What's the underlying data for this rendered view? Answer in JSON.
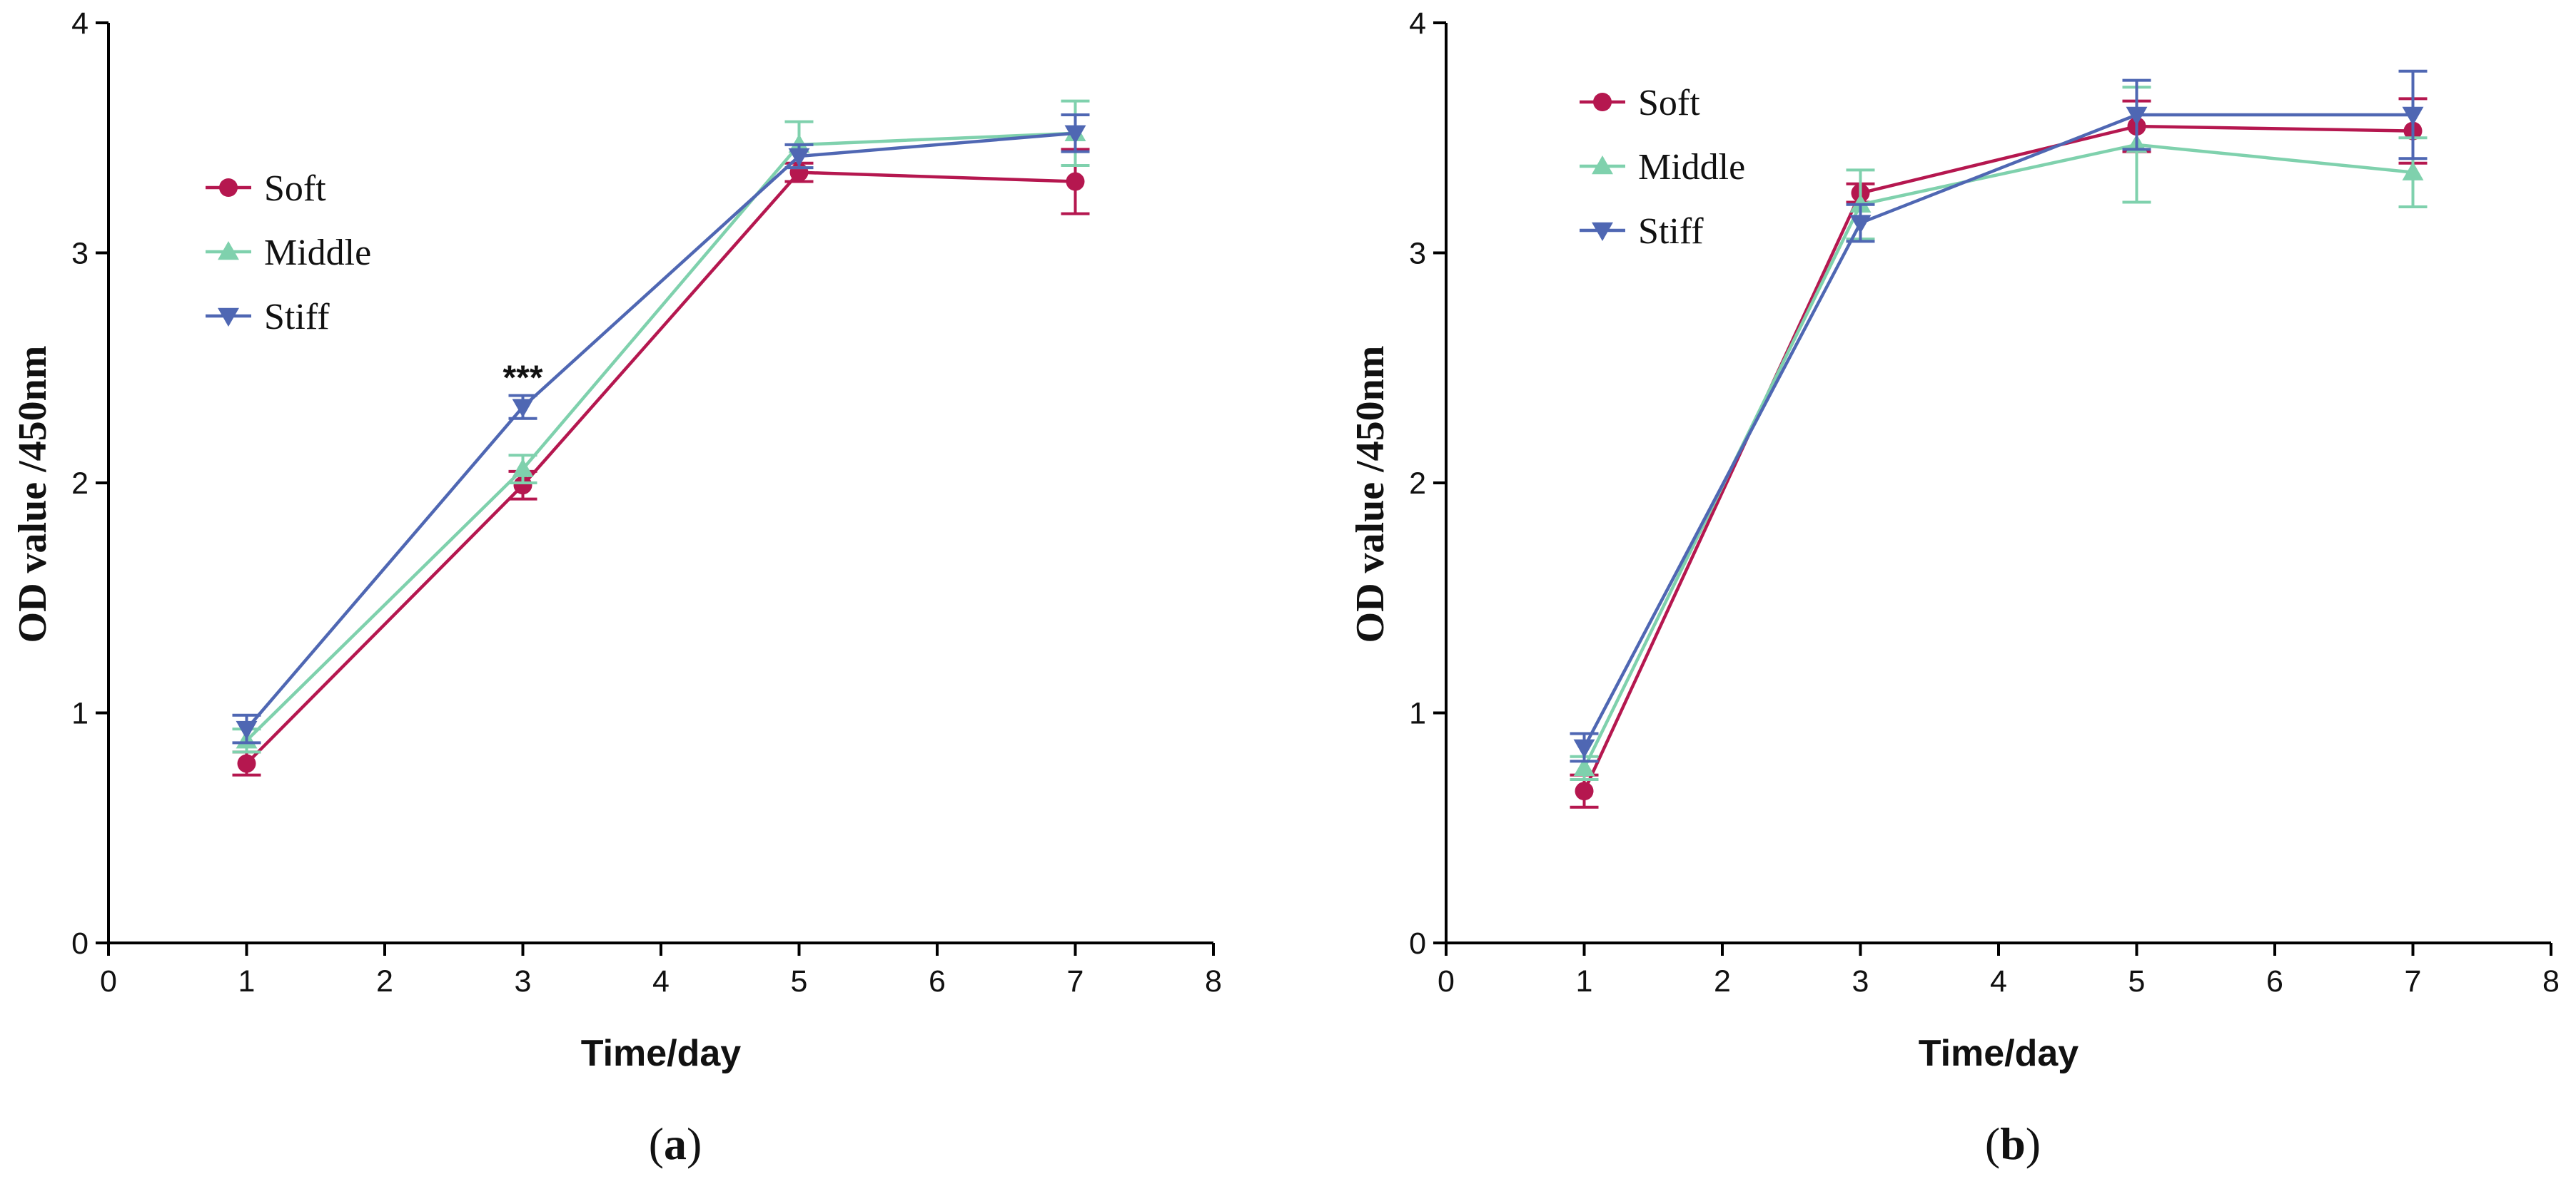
{
  "chart_data": [
    {
      "type": "line",
      "panel_label": {
        "open": "(",
        "letter": "a",
        "close": ")"
      },
      "xlabel": "Time/day",
      "ylabel": "OD value /450nm",
      "xlim": [
        0,
        8
      ],
      "ylim": [
        0,
        4
      ],
      "xticks": [
        0,
        1,
        2,
        3,
        4,
        5,
        6,
        7,
        8
      ],
      "yticks": [
        0,
        1,
        2,
        3,
        4
      ],
      "grid": false,
      "legend_position": "upper-left",
      "x": [
        1,
        3,
        5,
        7
      ],
      "series": [
        {
          "name": "Soft",
          "marker": "circle",
          "color": "#b5174f",
          "values": [
            0.78,
            1.99,
            3.35,
            3.31
          ],
          "errors": [
            0.05,
            0.06,
            0.04,
            0.14
          ]
        },
        {
          "name": "Middle",
          "marker": "triangle-up",
          "color": "#7fd1ad",
          "values": [
            0.88,
            2.06,
            3.47,
            3.52
          ],
          "errors": [
            0.05,
            0.06,
            0.1,
            0.14
          ]
        },
        {
          "name": "Stiff",
          "marker": "triangle-down",
          "color": "#4f67b3",
          "values": [
            0.93,
            2.33,
            3.42,
            3.52
          ],
          "errors": [
            0.06,
            0.05,
            0.05,
            0.08
          ]
        }
      ],
      "annotations": [
        {
          "text": "***",
          "x": 3,
          "y": 2.47
        }
      ]
    },
    {
      "type": "line",
      "panel_label": {
        "open": "(",
        "letter": "b",
        "close": ")"
      },
      "xlabel": "Time/day",
      "ylabel": "OD value /450nm",
      "xlim": [
        0,
        8
      ],
      "ylim": [
        0,
        4
      ],
      "xticks": [
        0,
        1,
        2,
        3,
        4,
        5,
        6,
        7,
        8
      ],
      "yticks": [
        0,
        1,
        2,
        3,
        4
      ],
      "grid": false,
      "legend_position": "upper-left",
      "x": [
        1,
        3,
        5,
        7
      ],
      "series": [
        {
          "name": "Soft",
          "marker": "circle",
          "color": "#b5174f",
          "values": [
            0.66,
            3.26,
            3.55,
            3.53
          ],
          "errors": [
            0.07,
            0.04,
            0.11,
            0.14
          ]
        },
        {
          "name": "Middle",
          "marker": "triangle-up",
          "color": "#7fd1ad",
          "values": [
            0.76,
            3.21,
            3.47,
            3.35
          ],
          "errors": [
            0.05,
            0.15,
            0.25,
            0.15
          ]
        },
        {
          "name": "Stiff",
          "marker": "triangle-down",
          "color": "#4f67b3",
          "values": [
            0.85,
            3.13,
            3.6,
            3.6
          ],
          "errors": [
            0.06,
            0.08,
            0.15,
            0.19
          ]
        }
      ],
      "annotations": []
    }
  ]
}
